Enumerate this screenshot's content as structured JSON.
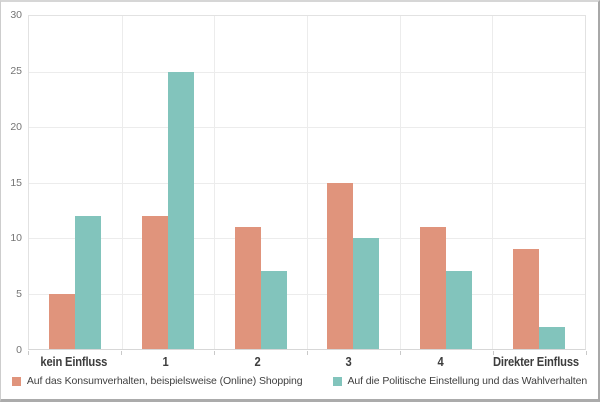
{
  "chart_data": {
    "type": "bar",
    "title": "",
    "xlabel": "",
    "ylabel": "",
    "categories": [
      "kein Einfluss",
      "1",
      "2",
      "3",
      "4",
      "Direkter Einfluss"
    ],
    "series": [
      {
        "name": "Auf das Konsumverhalten, beispielsweise (Online) Shopping",
        "color": "#E0947C",
        "values": [
          5,
          12,
          11,
          15,
          11,
          9
        ]
      },
      {
        "name": "Auf die Politische Einstellung und das Wahlverhalten",
        "color": "#82C4BC",
        "values": [
          12,
          25,
          7,
          10,
          7,
          2
        ]
      }
    ],
    "ylim": [
      0,
      30
    ],
    "ytick_step": 5,
    "ytick_labels": [
      "0",
      "5",
      "10",
      "15",
      "20",
      "25",
      "30"
    ],
    "grid": true,
    "legend_position": "bottom"
  },
  "colors": {
    "grid": "#ececec",
    "axis_text": "#757575",
    "category_text": "#3d3d3d",
    "legend_text": "#3f3f3f"
  }
}
